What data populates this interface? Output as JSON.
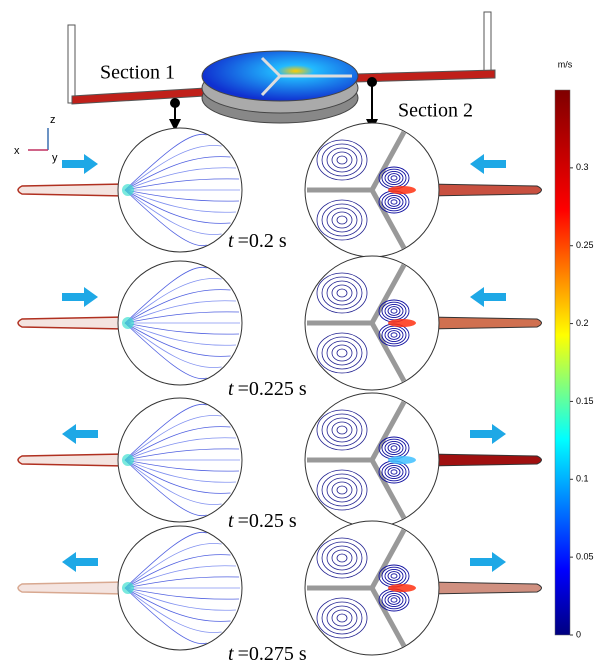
{
  "figure": {
    "section_labels": [
      "Section 1",
      "Section 2"
    ],
    "axis_labels": {
      "x": "x",
      "y": "y",
      "z": "z"
    },
    "time_labels": [
      {
        "symbol": "t",
        "rest": "=0.2 s"
      },
      {
        "symbol": "t",
        "rest": "=0.225 s"
      },
      {
        "symbol": "t",
        "rest": "=0.25 s"
      },
      {
        "symbol": "t",
        "rest": "=0.275 s"
      }
    ],
    "colorbar": {
      "unit": "m/s",
      "lim": [
        0,
        0.35
      ],
      "ticks": [
        0,
        0.05,
        0.1,
        0.15,
        0.2,
        0.25,
        0.3
      ]
    }
  }
}
